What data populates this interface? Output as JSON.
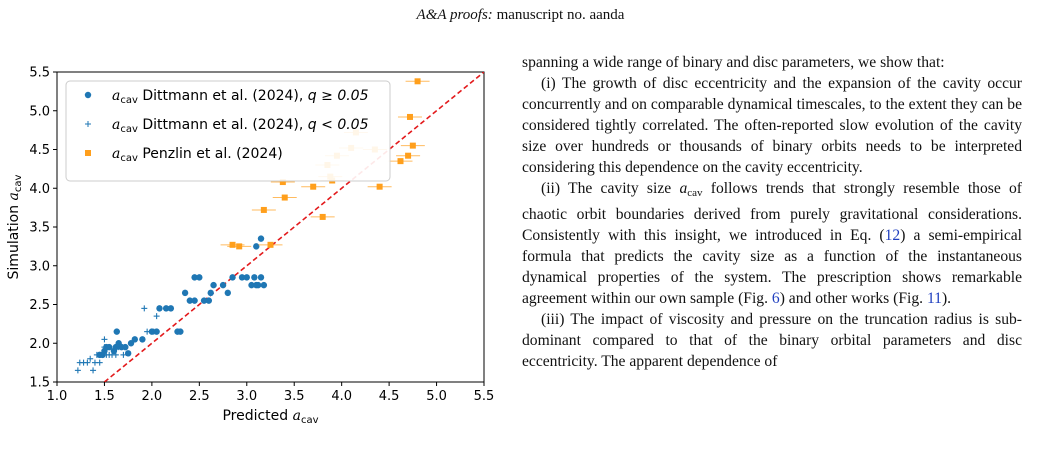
{
  "header": {
    "journal": "A&A proofs:",
    "rest": "manuscript no. aanda"
  },
  "chart_data": {
    "type": "scatter",
    "xlabel": "Predicted a_cav",
    "ylabel": "Simulation a_cav",
    "xlim": [
      1.0,
      5.5
    ],
    "ylim": [
      1.5,
      5.5
    ],
    "xticks": [
      "1.0",
      "1.5",
      "2.0",
      "2.5",
      "3.0",
      "3.5",
      "4.0",
      "4.5",
      "5.0",
      "5.5"
    ],
    "yticks": [
      "1.5",
      "2.0",
      "2.5",
      "3.0",
      "3.5",
      "4.0",
      "4.5",
      "5.0",
      "5.5"
    ],
    "legend_position": "top-left",
    "reference_line": "y = x (red dashed)",
    "colors": {
      "blue": "#1f77b4",
      "orange": "#ff9f1c",
      "line": "#e31a1c"
    },
    "series": [
      {
        "name": "a_cav Dittmann et al. (2024), q ≥ 0.05",
        "legend_sym": "a",
        "legend_rest": " Dittmann et al. (2024), ",
        "legend_cond": "q ≥ 0.05",
        "marker": "circle",
        "points": [
          [
            1.45,
            1.85
          ],
          [
            1.48,
            1.85
          ],
          [
            1.5,
            1.9
          ],
          [
            1.52,
            1.95
          ],
          [
            1.55,
            1.95
          ],
          [
            1.6,
            1.9
          ],
          [
            1.62,
            1.95
          ],
          [
            1.65,
            2.0
          ],
          [
            1.68,
            1.95
          ],
          [
            1.72,
            1.95
          ],
          [
            1.63,
            2.15
          ],
          [
            1.78,
            2.0
          ],
          [
            1.82,
            2.05
          ],
          [
            1.9,
            2.05
          ],
          [
            1.75,
            1.87
          ],
          [
            2.0,
            2.15
          ],
          [
            2.05,
            2.15
          ],
          [
            2.08,
            2.45
          ],
          [
            2.15,
            2.45
          ],
          [
            2.2,
            2.45
          ],
          [
            2.3,
            2.15
          ],
          [
            2.27,
            2.15
          ],
          [
            2.35,
            2.65
          ],
          [
            2.4,
            2.55
          ],
          [
            2.45,
            2.55
          ],
          [
            2.45,
            2.85
          ],
          [
            2.5,
            2.85
          ],
          [
            2.55,
            2.55
          ],
          [
            2.6,
            2.55
          ],
          [
            2.62,
            2.65
          ],
          [
            2.65,
            2.75
          ],
          [
            2.75,
            2.75
          ],
          [
            2.8,
            2.65
          ],
          [
            2.85,
            2.85
          ],
          [
            2.95,
            2.85
          ],
          [
            3.0,
            2.85
          ],
          [
            3.05,
            2.75
          ],
          [
            3.08,
            2.85
          ],
          [
            3.1,
            2.75
          ],
          [
            3.12,
            2.75
          ],
          [
            3.15,
            2.85
          ],
          [
            3.1,
            3.25
          ],
          [
            3.15,
            3.35
          ],
          [
            3.18,
            2.75
          ]
        ]
      },
      {
        "name": "a_cav Dittmann et al. (2024), q < 0.05",
        "legend_sym": "a",
        "legend_rest": " Dittmann et al. (2024), ",
        "legend_cond": "q < 0.05",
        "marker": "plus",
        "points": [
          [
            1.22,
            1.65
          ],
          [
            1.24,
            1.75
          ],
          [
            1.28,
            1.75
          ],
          [
            1.32,
            1.75
          ],
          [
            1.35,
            1.8
          ],
          [
            1.38,
            1.65
          ],
          [
            1.4,
            1.75
          ],
          [
            1.42,
            1.85
          ],
          [
            1.45,
            1.75
          ],
          [
            1.48,
            1.85
          ],
          [
            1.5,
            1.95
          ],
          [
            1.52,
            1.85
          ],
          [
            1.5,
            2.05
          ],
          [
            1.55,
            1.85
          ],
          [
            1.58,
            1.85
          ],
          [
            1.62,
            1.85
          ],
          [
            1.65,
            1.95
          ],
          [
            1.7,
            1.85
          ],
          [
            1.92,
            2.45
          ],
          [
            1.95,
            2.15
          ],
          [
            2.02,
            2.15
          ],
          [
            2.05,
            2.35
          ]
        ]
      },
      {
        "name": "a_cav Penzlin et al. (2024)",
        "legend_sym": "a",
        "legend_rest": " Penzlin et al. (2024)",
        "legend_cond": "",
        "marker": "square",
        "points": [
          [
            2.85,
            3.27
          ],
          [
            2.92,
            3.25
          ],
          [
            3.18,
            3.72
          ],
          [
            3.25,
            3.27
          ],
          [
            3.38,
            4.08
          ],
          [
            3.4,
            3.88
          ],
          [
            3.7,
            4.02
          ],
          [
            3.8,
            3.63
          ],
          [
            3.85,
            4.3
          ],
          [
            3.88,
            4.15
          ],
          [
            3.9,
            4.1
          ],
          [
            3.95,
            4.42
          ],
          [
            4.1,
            4.52
          ],
          [
            4.15,
            4.72
          ],
          [
            4.35,
            4.5
          ],
          [
            4.4,
            4.02
          ],
          [
            4.62,
            4.35
          ],
          [
            4.7,
            4.42
          ],
          [
            4.72,
            4.92
          ],
          [
            4.75,
            4.55
          ],
          [
            4.8,
            5.38
          ]
        ]
      }
    ]
  },
  "text": {
    "intro": "spanning a wide range of binary and disc parameters, we show that:",
    "p1": "(i) The growth of disc eccentricity and the expansion of the cavity occur concurrently and on comparable dynamical timescales, to the extent they can be considered tightly correlated. The often-reported slow evolution of the cavity size over hundreds or thousands of binary orbits needs to be interpreted considering this dependence on the cavity eccentricity.",
    "p2_a": "(ii) The cavity size ",
    "p2_sym": "a",
    "p2_sub": "cav",
    "p2_b": " follows trends that strongly resemble those of chaotic orbit boundaries derived from purely gravitational considerations. Consistently with this insight, we introduced in Eq. (",
    "p2_eq": "12",
    "p2_c": ") a semi-empirical formula that predicts the cavity size as a function of the instantaneous dynamical properties of the system. The prescription shows remarkable agreement within our own sample (Fig. ",
    "p2_fig6": "6",
    "p2_d": ") and other works (Fig. ",
    "p2_fig11": "11",
    "p2_e": ").",
    "p3": "(iii) The impact of viscosity and pressure on the truncation radius is sub-dominant compared to that of the binary orbital parameters and disc eccentricity. The apparent dependence of"
  }
}
